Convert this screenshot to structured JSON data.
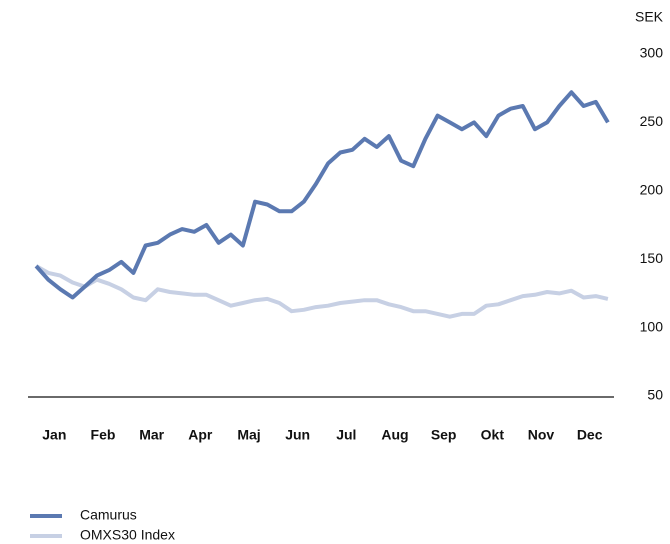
{
  "chart_data": {
    "type": "line",
    "y_unit": "SEK",
    "categories": [
      null,
      null,
      "Jan",
      null,
      null,
      null,
      "Feb",
      null,
      null,
      null,
      "Mar",
      null,
      null,
      null,
      "Apr",
      null,
      null,
      null,
      "Maj",
      null,
      null,
      null,
      "Jun",
      null,
      null,
      null,
      "Jul",
      null,
      null,
      null,
      "Aug",
      null,
      null,
      null,
      "Sep",
      null,
      null,
      null,
      "Okt",
      null,
      null,
      null,
      "Nov",
      null,
      null,
      null,
      "Dec",
      null
    ],
    "series": [
      {
        "name": "Camurus",
        "color": "#5b79b1",
        "values": [
          145,
          135,
          128,
          122,
          130,
          138,
          142,
          148,
          140,
          160,
          162,
          168,
          172,
          170,
          175,
          162,
          168,
          160,
          192,
          190,
          185,
          185,
          192,
          205,
          220,
          228,
          230,
          238,
          232,
          240,
          222,
          218,
          238,
          255,
          250,
          245,
          250,
          240,
          255,
          260,
          262,
          245,
          250,
          262,
          272,
          262,
          265,
          250
        ]
      },
      {
        "name": "OMXS30 Index",
        "color": "#c7d0e4",
        "values": [
          145,
          140,
          138,
          133,
          130,
          135,
          132,
          128,
          122,
          120,
          128,
          126,
          125,
          124,
          124,
          120,
          116,
          118,
          120,
          121,
          118,
          112,
          113,
          115,
          116,
          118,
          119,
          120,
          120,
          117,
          115,
          112,
          112,
          110,
          108,
          110,
          110,
          116,
          117,
          120,
          123,
          124,
          126,
          125,
          127,
          122,
          123,
          121
        ]
      }
    ],
    "ylim": [
      50,
      300
    ],
    "yticks": [
      50,
      100,
      150,
      200,
      250,
      300
    ],
    "grid": false,
    "legend": "bottom-left"
  }
}
